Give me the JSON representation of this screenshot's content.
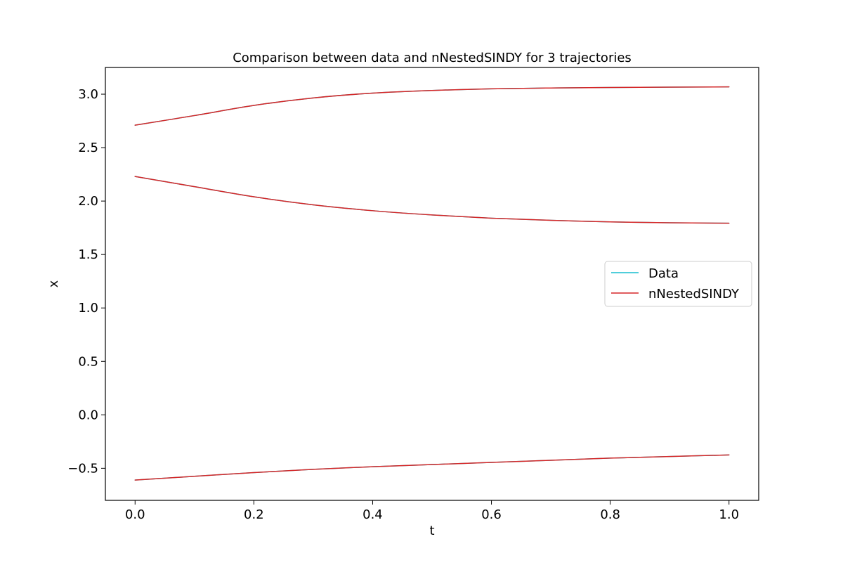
{
  "chart_data": {
    "type": "line",
    "title": "Comparison between data and nNestedSINDY for 3 trajectories",
    "xlabel": "t",
    "ylabel": "x",
    "xlim": [
      -0.05,
      1.05
    ],
    "ylim": [
      -0.8,
      3.25
    ],
    "xticks": [
      0.0,
      0.2,
      0.4,
      0.6,
      0.8,
      1.0
    ],
    "xtick_labels": [
      "0.0",
      "0.2",
      "0.4",
      "0.6",
      "0.8",
      "1.0"
    ],
    "yticks": [
      -0.5,
      0.0,
      0.5,
      1.0,
      1.5,
      2.0,
      2.5,
      3.0
    ],
    "ytick_labels": [
      "−0.5",
      "0.0",
      "0.5",
      "1.0",
      "1.5",
      "2.0",
      "2.5",
      "3.0"
    ],
    "grid": false,
    "legend_position": "center-right",
    "x": [
      0.0,
      0.1,
      0.2,
      0.3,
      0.4,
      0.5,
      0.6,
      0.7,
      0.8,
      0.9,
      1.0
    ],
    "series": [
      {
        "name": "Data",
        "color": "#17becf",
        "trajectories": [
          [
            2.71,
            2.8,
            2.895,
            2.965,
            3.01,
            3.035,
            3.05,
            3.058,
            3.063,
            3.066,
            3.068
          ],
          [
            2.23,
            2.135,
            2.04,
            1.965,
            1.91,
            1.87,
            1.84,
            1.82,
            1.805,
            1.797,
            1.793
          ],
          [
            -0.61,
            -0.575,
            -0.54,
            -0.51,
            -0.485,
            -0.465,
            -0.445,
            -0.425,
            -0.405,
            -0.39,
            -0.375
          ]
        ]
      },
      {
        "name": "nNestedSINDY",
        "color": "#d62728",
        "trajectories": [
          [
            2.71,
            2.8,
            2.895,
            2.965,
            3.01,
            3.035,
            3.05,
            3.058,
            3.063,
            3.066,
            3.068
          ],
          [
            2.23,
            2.135,
            2.04,
            1.965,
            1.91,
            1.87,
            1.84,
            1.82,
            1.805,
            1.797,
            1.793
          ],
          [
            -0.61,
            -0.575,
            -0.54,
            -0.51,
            -0.485,
            -0.465,
            -0.445,
            -0.425,
            -0.405,
            -0.39,
            -0.375
          ]
        ]
      }
    ]
  }
}
